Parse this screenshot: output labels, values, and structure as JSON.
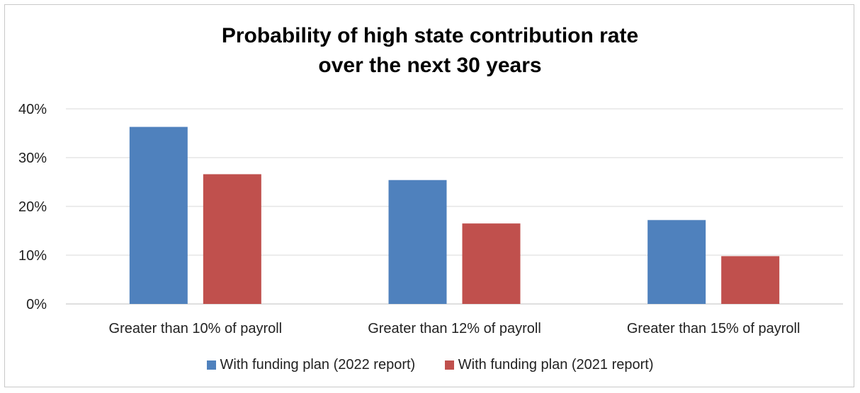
{
  "chart_data": {
    "type": "bar",
    "title": [
      "Probability of high state contribution rate",
      "over the next 30 years"
    ],
    "categories": [
      "Greater than 10% of payroll",
      "Greater than 12% of payroll",
      "Greater than 15% of payroll"
    ],
    "series": [
      {
        "name": "With funding plan (2022 report)",
        "color": "#4f81bd",
        "values": [
          36.3,
          25.4,
          17.2
        ]
      },
      {
        "name": "With funding plan (2021 report)",
        "color": "#c0504d",
        "values": [
          26.6,
          16.5,
          9.8
        ]
      }
    ],
    "ylim": [
      0,
      40
    ],
    "yticks": [
      "0%",
      "10%",
      "20%",
      "30%",
      "40%"
    ],
    "grid": true,
    "legend": "bottom"
  }
}
